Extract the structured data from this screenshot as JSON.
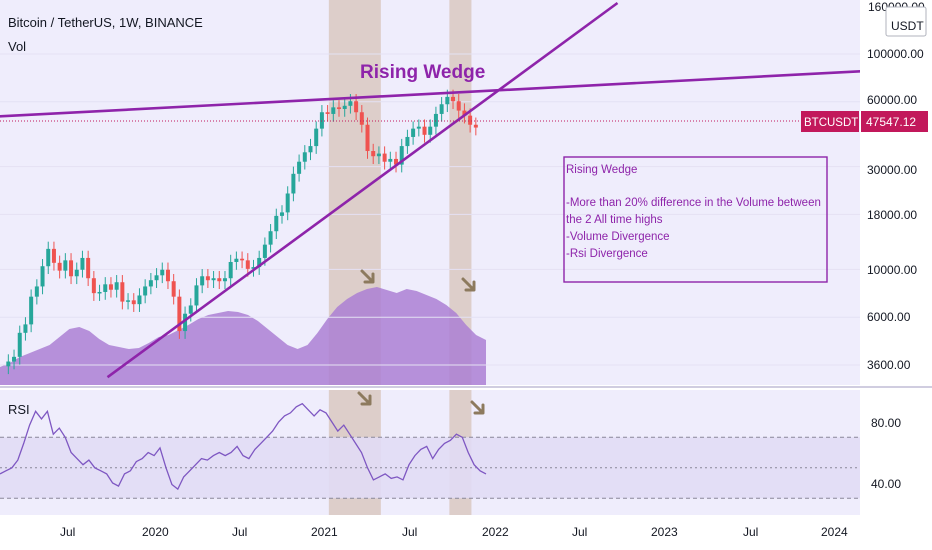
{
  "header": {
    "symbol_line": "Bitcoin / TetherUS, 1W, BINANCE",
    "volume_label": "Vol"
  },
  "price_axis": {
    "currency": "USDT",
    "ticks": [
      "100000.00",
      "60000.00",
      "30000.00",
      "18000.00",
      "10000.00",
      "6000.00",
      "3600.00"
    ],
    "top_partial_tick": "160000.00",
    "scale": "log"
  },
  "price_badge": {
    "symbol": "BTCUSDT",
    "price": "47547.12"
  },
  "rsi": {
    "label": "RSI",
    "ticks": [
      "80.00",
      "40.00"
    ]
  },
  "time_axis": {
    "ticks": [
      "Jul",
      "2020",
      "Jul",
      "2021",
      "Jul",
      "2022",
      "Jul",
      "2023",
      "Jul",
      "2024"
    ]
  },
  "annotations": {
    "pattern_label": "Rising Wedge",
    "note_box_lines": [
      "Rising Wedge",
      "",
      "-More than 20% difference in the Volume between",
      "the 2 All time highs",
      "-Volume Divergence",
      "-Rsi Divergence"
    ]
  },
  "colors": {
    "background": "#efedfc",
    "candle_up": "#26a69a",
    "candle_down": "#ef5350",
    "wedge_line": "#8e24aa",
    "volume_fill": "#ab7fd3",
    "rsi_line": "#7e57c2",
    "badge": "#c2185b",
    "highlight_zone": "#d7c3b9",
    "arrow": "#8d7a5e"
  },
  "chart_data": {
    "type": "candlestick",
    "scale": "log",
    "x_start": "2019-03",
    "x_end": "2021-12",
    "close_series": [
      3900,
      4100,
      5300,
      5800,
      7800,
      8700,
      10800,
      13000,
      11200,
      10300,
      11500,
      9700,
      10400,
      11800,
      9500,
      8100,
      8200,
      8900,
      8400,
      9100,
      7400,
      7500,
      7200,
      7900,
      8700,
      9300,
      9800,
      10400,
      9200,
      7800,
      5400,
      6500,
      7100,
      8800,
      9700,
      9300,
      9500,
      9200,
      9500,
      11300,
      11700,
      11500,
      10500,
      10700,
      11800,
      13600,
      15700,
      18500,
      19200,
      23500,
      29000,
      33000,
      36500,
      39000,
      47000,
      56000,
      55000,
      59000,
      58000,
      60000,
      63000,
      56000,
      49000,
      37000,
      35000,
      36000,
      33000,
      34000,
      32000,
      39000,
      43000,
      47000,
      48000,
      44000,
      48000,
      55000,
      61000,
      66000,
      63000,
      57000,
      54000,
      49000,
      47547
    ],
    "wedge_upper_line": {
      "from": {
        "date": "2019-01",
        "price": 53000
      },
      "to": {
        "date": "2024-05",
        "price": 88000
      }
    },
    "wedge_lower_line": {
      "from": {
        "date": "2019-10",
        "price": 3300
      },
      "to": {
        "date": "2022-10",
        "price": 180000
      }
    },
    "highlight_zones": [
      {
        "from": "2021-01-20",
        "to": "2021-05-10"
      },
      {
        "from": "2021-10-05",
        "to": "2021-11-22"
      }
    ],
    "volume_series": [
      0.18,
      0.22,
      0.28,
      0.32,
      0.36,
      0.4,
      0.48,
      0.56,
      0.58,
      0.54,
      0.46,
      0.4,
      0.38,
      0.36,
      0.37,
      0.42,
      0.48,
      0.5,
      0.55,
      0.6,
      0.66,
      0.7,
      0.72,
      0.74,
      0.73,
      0.7,
      0.64,
      0.56,
      0.48,
      0.4,
      0.36,
      0.4,
      0.52,
      0.66,
      0.78,
      0.86,
      0.92,
      0.96,
      0.98,
      0.95,
      0.92,
      0.96,
      0.94,
      0.9,
      0.86,
      0.8,
      0.72,
      0.6,
      0.5,
      0.45
    ],
    "rsi_series": [
      46,
      48,
      50,
      55,
      66,
      78,
      87,
      82,
      87,
      72,
      76,
      70,
      60,
      56,
      52,
      55,
      50,
      48,
      46,
      40,
      38,
      46,
      48,
      54,
      56,
      60,
      58,
      63,
      50,
      39,
      36,
      44,
      48,
      52,
      56,
      55,
      58,
      60,
      58,
      60,
      64,
      58,
      56,
      62,
      66,
      70,
      74,
      80,
      84,
      86,
      90,
      92,
      88,
      84,
      88,
      86,
      80,
      74,
      78,
      72,
      66,
      60,
      50,
      42,
      44,
      46,
      43,
      44,
      42,
      52,
      58,
      62,
      64,
      56,
      62,
      66,
      68,
      72,
      70,
      60,
      52,
      48,
      46
    ]
  }
}
